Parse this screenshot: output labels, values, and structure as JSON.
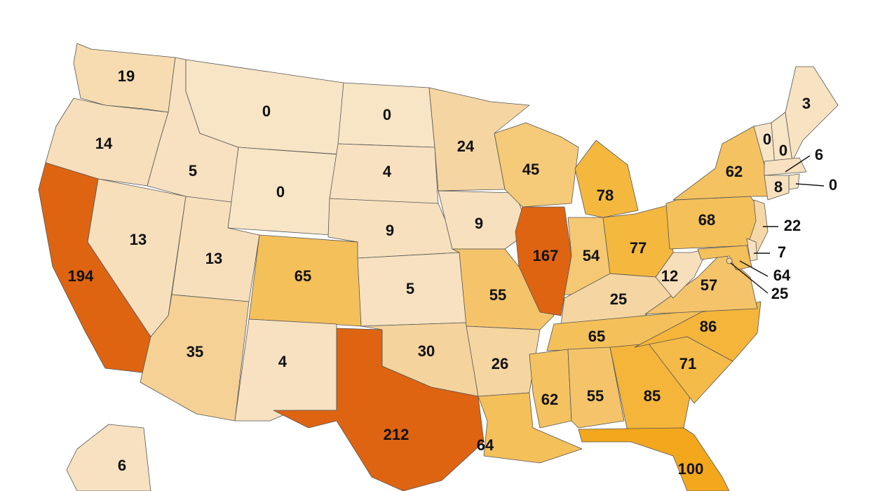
{
  "regions": [
    {
      "value": 19,
      "color": "#f6dcb0"
    },
    {
      "value": 14,
      "color": "#f7dfbb"
    },
    {
      "value": 194,
      "color": "#de6412"
    },
    {
      "value": 13,
      "color": "#f7dfbb"
    },
    {
      "value": 5,
      "color": "#f7e1c0"
    },
    {
      "value": 0,
      "color": "#f8e5c6"
    },
    {
      "value": 0,
      "color": "#f8e5c6"
    },
    {
      "value": 13,
      "color": "#f7dfbb"
    },
    {
      "value": 65,
      "color": "#f4c05a"
    },
    {
      "value": 35,
      "color": "#f5d196"
    },
    {
      "value": 4,
      "color": "#f7e1c0"
    },
    {
      "value": 0,
      "color": "#f8e5c6"
    },
    {
      "value": 4,
      "color": "#f7e1c0"
    },
    {
      "value": 9,
      "color": "#f7e0bd"
    },
    {
      "value": 5,
      "color": "#f7e1c0"
    },
    {
      "value": 30,
      "color": "#f5d39c"
    },
    {
      "value": 212,
      "color": "#de6412"
    },
    {
      "value": 24,
      "color": "#f5d6a2"
    },
    {
      "value": 9,
      "color": "#f7e0bd"
    },
    {
      "value": 55,
      "color": "#f5c46a"
    },
    {
      "value": 26,
      "color": "#f5d5a0"
    },
    {
      "value": 64,
      "color": "#f4c05a"
    },
    {
      "value": 45,
      "color": "#f5ca78"
    },
    {
      "value": 167,
      "color": "#de6412"
    },
    {
      "value": 78,
      "color": "#f4b83e"
    },
    {
      "value": 54,
      "color": "#f5c873"
    },
    {
      "value": 77,
      "color": "#f4b83e"
    },
    {
      "value": 25,
      "color": "#f5d6a2"
    },
    {
      "value": 65,
      "color": "#f4c05a"
    },
    {
      "value": 62,
      "color": "#f4c260"
    },
    {
      "value": 55,
      "color": "#f5c46a"
    },
    {
      "value": 85,
      "color": "#f4b53a"
    },
    {
      "value": 100,
      "color": "#f3a71c"
    },
    {
      "value": 71,
      "color": "#f4bb48"
    },
    {
      "value": 86,
      "color": "#f4b53a"
    },
    {
      "value": 57,
      "color": "#f5c46a"
    },
    {
      "value": 12,
      "color": "#f7dfbb"
    },
    {
      "value": 68,
      "color": "#f4c05a"
    },
    {
      "value": 62,
      "color": "#f4c260"
    },
    {
      "value": 0,
      "color": "#f8e5c6"
    },
    {
      "value": 0,
      "color": "#f8e5c6"
    },
    {
      "value": 3,
      "color": "#f7e2c2"
    },
    {
      "value": 6,
      "color": "#f7e1c0"
    },
    {
      "value": 0,
      "color": "#f8e5c6"
    },
    {
      "value": 8,
      "color": "#f7e0bd"
    },
    {
      "value": 22,
      "color": "#f5d8a8"
    },
    {
      "value": 7,
      "color": "#f7e0bd"
    },
    {
      "value": 64,
      "color": "#f4c05a"
    },
    {
      "value": 25,
      "color": "#f5d6a2"
    },
    {
      "value": 6,
      "color": "#f7e1c0"
    }
  ]
}
